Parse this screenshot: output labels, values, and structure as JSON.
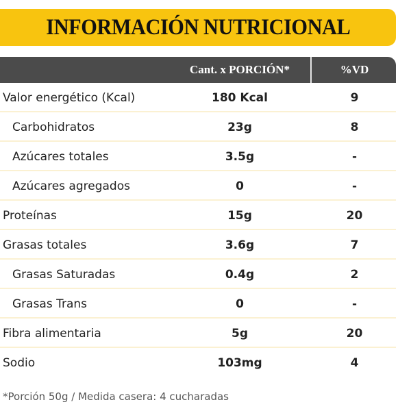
{
  "title": "INFORMACIÓN NUTRICIONAL",
  "colors": {
    "accent": "#f8c40f",
    "header": "#4b4b4b"
  },
  "table": {
    "headers": [
      "",
      "Cant. x PORCIÓN*",
      "%VD"
    ],
    "rows": [
      {
        "label": "Valor energético (Kcal)",
        "amount": "180 Kcal",
        "vd": "9",
        "indent": false
      },
      {
        "label": "Carbohidratos",
        "amount": "23g",
        "vd": "8",
        "indent": true
      },
      {
        "label": "Azúcares totales",
        "amount": "3.5g",
        "vd": "-",
        "indent": true
      },
      {
        "label": "Azúcares agregados",
        "amount": "0",
        "vd": "-",
        "indent": true
      },
      {
        "label": "Proteínas",
        "amount": "15g",
        "vd": "20",
        "indent": false
      },
      {
        "label": "Grasas totales",
        "amount": "3.6g",
        "vd": "7",
        "indent": false
      },
      {
        "label": "Grasas Saturadas",
        "amount": "0.4g",
        "vd": "2",
        "indent": true
      },
      {
        "label": "Grasas Trans",
        "amount": "0",
        "vd": "-",
        "indent": true
      },
      {
        "label": "Fibra alimentaria",
        "amount": "5g",
        "vd": "20",
        "indent": false
      },
      {
        "label": "Sodio",
        "amount": "103mg",
        "vd": "4",
        "indent": false
      }
    ]
  },
  "footnote": "*Porción 50g / Medida casera: 4 cucharadas"
}
